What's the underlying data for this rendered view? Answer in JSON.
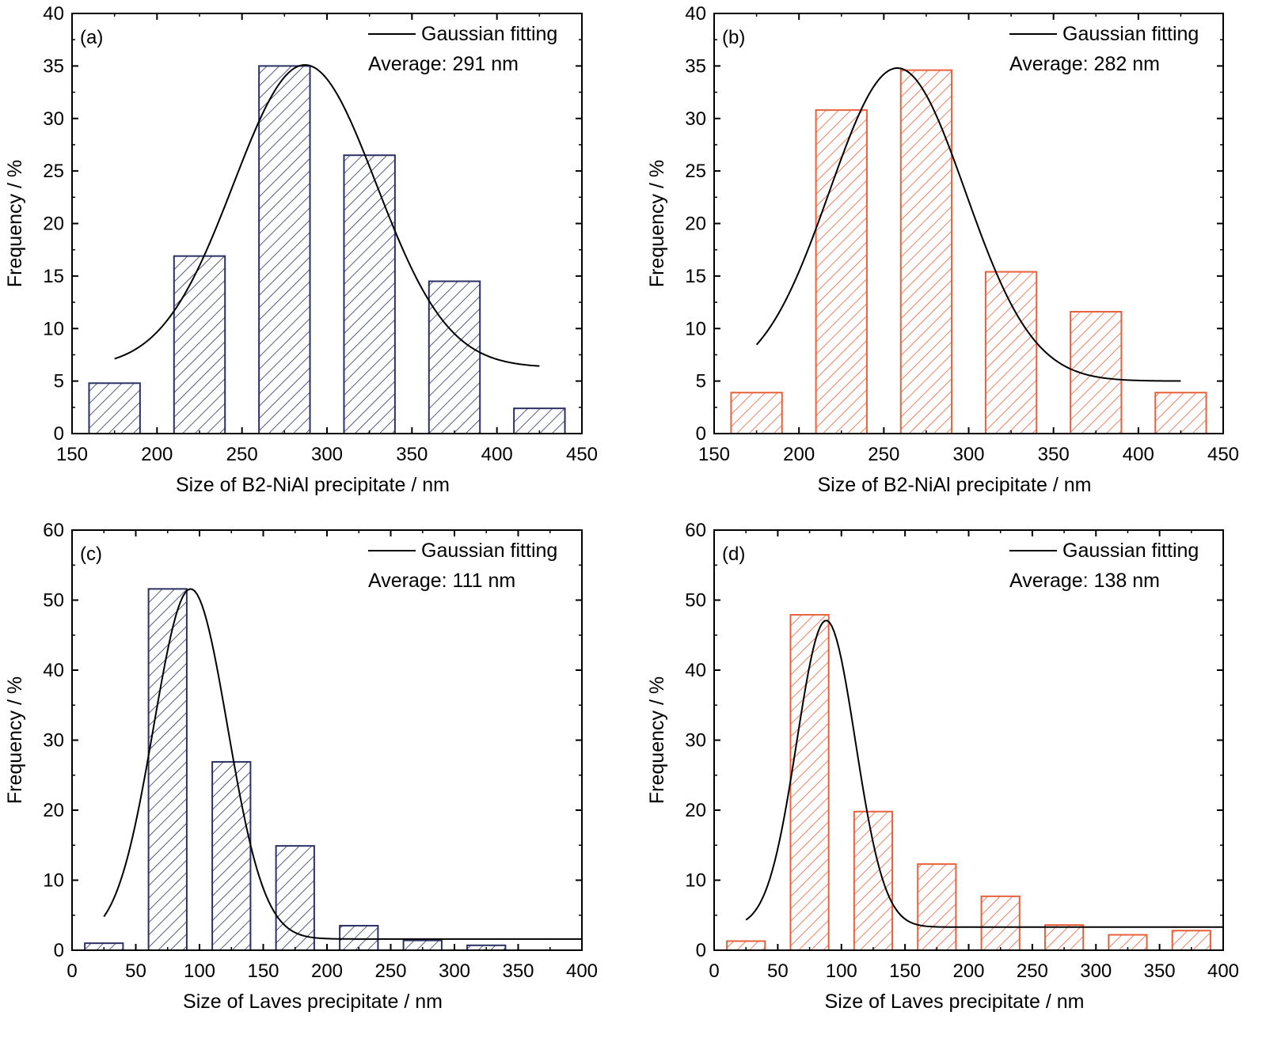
{
  "chart_data": [
    {
      "panel": "(a)",
      "type": "bar",
      "color": "#2b3164",
      "xlabel": "Size of B2-NiAl precipitate / nm",
      "ylabel": "Frequency / %",
      "xlim": [
        150,
        450
      ],
      "ylim": [
        0,
        40
      ],
      "xticks": [
        150,
        200,
        250,
        300,
        350,
        400,
        450
      ],
      "yticks": [
        0,
        5,
        10,
        15,
        20,
        25,
        30,
        35,
        40
      ],
      "bars": [
        {
          "from": 160,
          "to": 190,
          "value": 4.8
        },
        {
          "from": 210,
          "to": 240,
          "value": 16.9
        },
        {
          "from": 260,
          "to": 290,
          "value": 35
        },
        {
          "from": 310,
          "to": 340,
          "value": 26.5
        },
        {
          "from": 360,
          "to": 390,
          "value": 14.5
        },
        {
          "from": 410,
          "to": 440,
          "value": 2.4
        }
      ],
      "fit": {
        "type": "gaussian",
        "legend": "Gaussian fitting",
        "baseline": 6.3,
        "amplitude": 28.8,
        "center": 287,
        "sigma": 42,
        "xrange": [
          175,
          425
        ]
      },
      "average_text": "Average: 291 nm",
      "legend_position": "top-right",
      "grid": false
    },
    {
      "panel": "(b)",
      "type": "bar",
      "color": "#e8613a",
      "xlabel": "Size of B2-NiAl precipitate / nm",
      "ylabel": "Frequency / %",
      "xlim": [
        150,
        450
      ],
      "ylim": [
        0,
        40
      ],
      "xticks": [
        150,
        200,
        250,
        300,
        350,
        400,
        450
      ],
      "yticks": [
        0,
        5,
        10,
        15,
        20,
        25,
        30,
        35,
        40
      ],
      "bars": [
        {
          "from": 160,
          "to": 190,
          "value": 3.9
        },
        {
          "from": 210,
          "to": 240,
          "value": 30.8
        },
        {
          "from": 260,
          "to": 290,
          "value": 34.6
        },
        {
          "from": 310,
          "to": 340,
          "value": 15.4
        },
        {
          "from": 360,
          "to": 390,
          "value": 11.6
        },
        {
          "from": 410,
          "to": 440,
          "value": 3.9
        }
      ],
      "fit": {
        "type": "gaussian",
        "legend": "Gaussian fitting",
        "baseline": 5.0,
        "amplitude": 29.8,
        "center": 258,
        "sigma": 40,
        "xrange": [
          175,
          425
        ]
      },
      "average_text": "Average: 282 nm",
      "legend_position": "top-right",
      "grid": false
    },
    {
      "panel": "(c)",
      "type": "bar",
      "color": "#2b3164",
      "xlabel": "Size of Laves precipitate /  nm",
      "ylabel": "Frequency / %",
      "xlim": [
        0,
        400
      ],
      "ylim": [
        0,
        60
      ],
      "xticks": [
        0,
        50,
        100,
        150,
        200,
        250,
        300,
        350,
        400
      ],
      "yticks": [
        0,
        10,
        20,
        30,
        40,
        50,
        60
      ],
      "bars": [
        {
          "from": 10,
          "to": 40,
          "value": 1.0
        },
        {
          "from": 60,
          "to": 90,
          "value": 51.6
        },
        {
          "from": 110,
          "to": 140,
          "value": 26.9
        },
        {
          "from": 160,
          "to": 190,
          "value": 14.9
        },
        {
          "from": 210,
          "to": 240,
          "value": 3.5
        },
        {
          "from": 260,
          "to": 290,
          "value": 1.4
        },
        {
          "from": 310,
          "to": 340,
          "value": 0.7
        }
      ],
      "fit": {
        "type": "gaussian",
        "legend": "Gaussian fitting",
        "baseline": 1.6,
        "amplitude": 50.0,
        "center": 93,
        "sigma": 29,
        "xrange": [
          25,
          400
        ]
      },
      "average_text": "Average: 111 nm",
      "legend_position": "top-right",
      "grid": false
    },
    {
      "panel": "(d)",
      "type": "bar",
      "color": "#e8613a",
      "xlabel": "Size of Laves precipitate / nm",
      "ylabel": "Frequency / %",
      "xlim": [
        0,
        400
      ],
      "ylim": [
        0,
        60
      ],
      "xticks": [
        0,
        50,
        100,
        150,
        200,
        250,
        300,
        350,
        400
      ],
      "yticks": [
        0,
        10,
        20,
        30,
        40,
        50,
        60
      ],
      "bars": [
        {
          "from": 10,
          "to": 40,
          "value": 1.3
        },
        {
          "from": 60,
          "to": 90,
          "value": 47.9
        },
        {
          "from": 110,
          "to": 140,
          "value": 19.8
        },
        {
          "from": 160,
          "to": 190,
          "value": 12.3
        },
        {
          "from": 210,
          "to": 240,
          "value": 7.7
        },
        {
          "from": 260,
          "to": 290,
          "value": 3.6
        },
        {
          "from": 310,
          "to": 340,
          "value": 2.2
        },
        {
          "from": 360,
          "to": 390,
          "value": 2.8
        }
      ],
      "fit": {
        "type": "gaussian",
        "legend": "Gaussian fitting",
        "baseline": 3.3,
        "amplitude": 43.8,
        "center": 88,
        "sigma": 23,
        "xrange": [
          25,
          400
        ]
      },
      "average_text": "Average: 138 nm",
      "legend_position": "top-right",
      "grid": false
    }
  ]
}
